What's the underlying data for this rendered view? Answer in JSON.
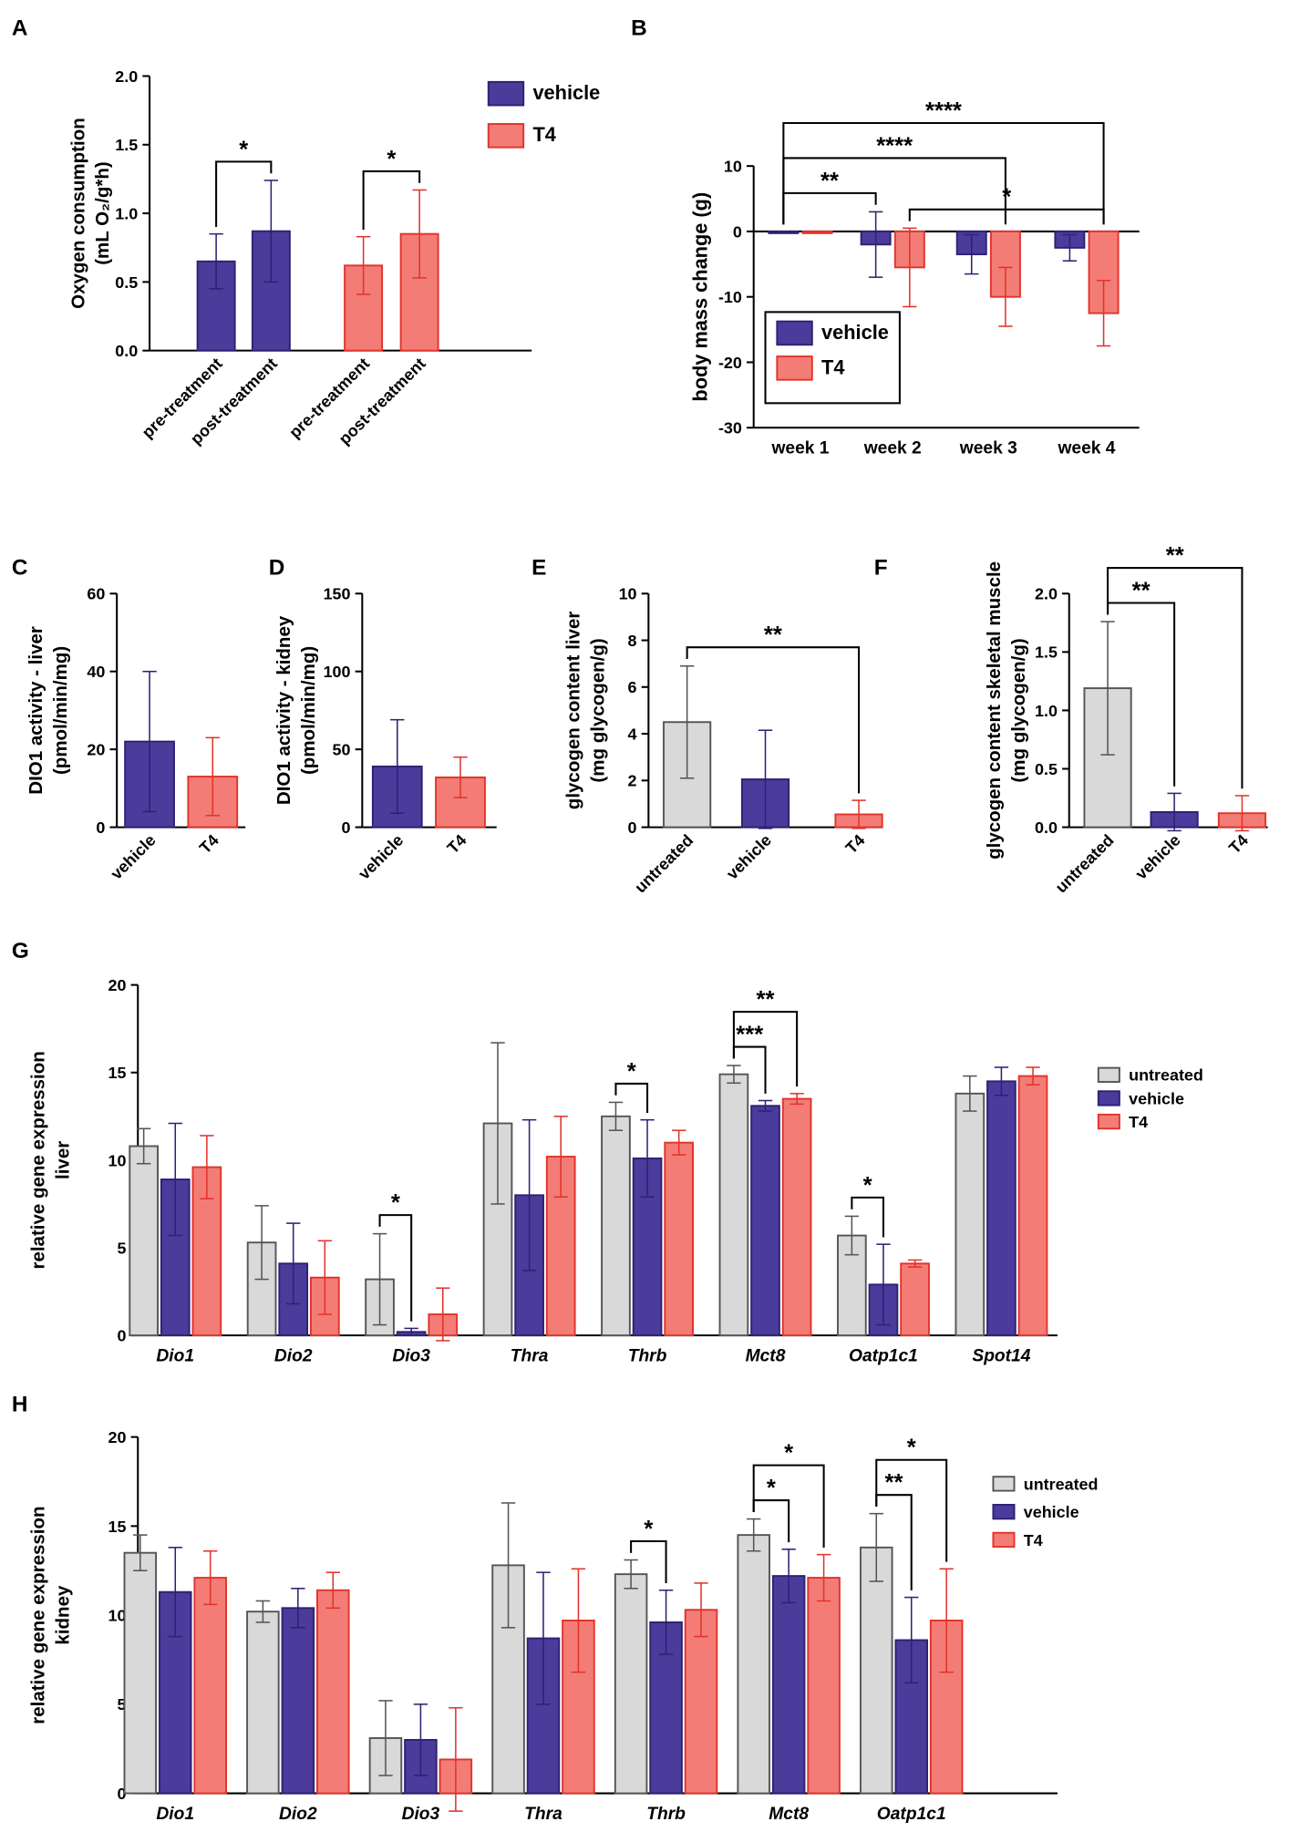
{
  "chart_data": [
    {
      "type": "bar",
      "panel": "A",
      "ylabel": [
        "Oxygen consumption",
        "(mL O₂/g*h)"
      ],
      "categories": [
        "pre-treatment",
        "post-treatment",
        "pre-treatment",
        "post-treatment"
      ],
      "series": [
        {
          "name": "vehicle",
          "color": "#4b3b9b",
          "edge": "#2c2273",
          "values": [
            0.65,
            0.87,
            null,
            null
          ],
          "errors": [
            0.2,
            0.37,
            null,
            null
          ]
        },
        {
          "name": "T4",
          "color": "#f37d76",
          "edge": "#e2332b",
          "values": [
            null,
            null,
            0.62,
            0.85
          ],
          "errors": [
            null,
            null,
            0.21,
            0.32
          ]
        }
      ],
      "ylim": [
        0,
        2
      ],
      "yticks": [
        {
          "value": 0,
          "label": "0.0"
        },
        {
          "value": 0.5,
          "label": "0.5"
        },
        {
          "value": 1,
          "label": "1.0"
        },
        {
          "value": 1.5,
          "label": "1.5"
        },
        {
          "value": 2,
          "label": "2.0"
        }
      ],
      "legend": "right",
      "annotations": [
        {
          "text": "*",
          "from": [
            0,
            0
          ],
          "to": [
            1,
            0
          ]
        },
        {
          "text": "*",
          "from": [
            2,
            1
          ],
          "to": [
            3,
            1
          ]
        }
      ]
    },
    {
      "type": "bar",
      "panel": "B",
      "ylabel": [
        "body mass change (g)"
      ],
      "categories": [
        "week 1",
        "week 2",
        "week 3",
        "week 4"
      ],
      "series": [
        {
          "name": "vehicle",
          "color": "#4b3b9b",
          "edge": "#2c2273",
          "values": [
            0,
            -2,
            -3.5,
            -2.5
          ],
          "errors": [
            0,
            5,
            3,
            2
          ]
        },
        {
          "name": "T4",
          "color": "#f37d76",
          "edge": "#e2332b",
          "values": [
            0,
            -5.5,
            -10,
            -12.5
          ],
          "errors": [
            0,
            6,
            4.5,
            5
          ]
        }
      ],
      "ylim": [
        -30,
        10
      ],
      "yticks": [
        -30,
        -20,
        -10,
        0,
        10
      ],
      "legend": "lower left",
      "annotations": [
        {
          "text": "**",
          "from": [
            0,
            0
          ],
          "to": [
            1,
            0
          ]
        },
        {
          "text": "*",
          "from": [
            1,
            1
          ],
          "to": [
            3,
            1
          ]
        },
        {
          "text": "****",
          "from": [
            0,
            0
          ],
          "to": [
            2,
            1
          ]
        },
        {
          "text": "****",
          "from": [
            0,
            0
          ],
          "to": [
            3,
            1
          ]
        }
      ]
    },
    {
      "type": "bar",
      "panel": "C",
      "ylabel": [
        "DIO1 activity - liver",
        "(pmol/min/mg)"
      ],
      "categories": [
        "vehicle",
        "T4"
      ],
      "series": [
        {
          "color": "#4b3b9b",
          "edge": "#2c2273",
          "values": [
            22,
            null
          ],
          "errors": [
            18,
            null
          ]
        },
        {
          "color": "#f37d76",
          "edge": "#e2332b",
          "values": [
            null,
            13
          ],
          "errors": [
            null,
            10
          ]
        }
      ],
      "ylim": [
        0,
        60
      ],
      "yticks": [
        0,
        20,
        40,
        60
      ],
      "annotations": []
    },
    {
      "type": "bar",
      "panel": "D",
      "ylabel": [
        "DIO1 activity - kidney",
        "(pmol/min/mg)"
      ],
      "categories": [
        "vehicle",
        "T4"
      ],
      "series": [
        {
          "color": "#4b3b9b",
          "edge": "#2c2273",
          "values": [
            39,
            null
          ],
          "errors": [
            30,
            null
          ]
        },
        {
          "color": "#f37d76",
          "edge": "#e2332b",
          "values": [
            null,
            32
          ],
          "errors": [
            null,
            13
          ]
        }
      ],
      "ylim": [
        0,
        150
      ],
      "yticks": [
        0,
        50,
        100,
        150
      ],
      "annotations": []
    },
    {
      "type": "bar",
      "panel": "E",
      "ylabel": [
        "glycogen content liver",
        "(mg glycogen/g)"
      ],
      "categories": [
        "untreated",
        "vehicle",
        "T4"
      ],
      "series": [
        {
          "color": "#d9d9d9",
          "edge": "#555555",
          "values": [
            4.5,
            null,
            null
          ],
          "errors": [
            2.4,
            null,
            null
          ]
        },
        {
          "color": "#4b3b9b",
          "edge": "#2c2273",
          "values": [
            null,
            2.05,
            null
          ],
          "errors": [
            null,
            2.1,
            null
          ]
        },
        {
          "color": "#f37d76",
          "edge": "#e2332b",
          "values": [
            null,
            null,
            0.55
          ],
          "errors": [
            null,
            null,
            0.6
          ]
        }
      ],
      "ylim": [
        0,
        10
      ],
      "yticks": [
        0,
        2,
        4,
        6,
        8,
        10
      ],
      "annotations": [
        {
          "text": "**",
          "from": [
            0,
            0
          ],
          "to": [
            2,
            2
          ]
        }
      ]
    },
    {
      "type": "bar",
      "panel": "F",
      "ylabel": [
        "glycogen content skeletal muscle",
        "(mg glycogen/g)"
      ],
      "categories": [
        "untreated",
        "vehicle",
        "T4"
      ],
      "series": [
        {
          "color": "#d9d9d9",
          "edge": "#555555",
          "values": [
            1.19,
            null,
            null
          ],
          "errors": [
            0.57,
            null,
            null
          ]
        },
        {
          "color": "#4b3b9b",
          "edge": "#2c2273",
          "values": [
            null,
            0.13,
            null
          ],
          "errors": [
            null,
            0.16,
            null
          ]
        },
        {
          "color": "#f37d76",
          "edge": "#e2332b",
          "values": [
            null,
            null,
            0.12
          ],
          "errors": [
            null,
            null,
            0.15
          ]
        }
      ],
      "ylim": [
        0,
        2
      ],
      "yticks": [
        {
          "value": 0,
          "label": "0.0"
        },
        {
          "value": 0.5,
          "label": "0.5"
        },
        {
          "value": 1,
          "label": "1.0"
        },
        {
          "value": 1.5,
          "label": "1.5"
        },
        {
          "value": 2,
          "label": "2.0"
        }
      ],
      "annotations": [
        {
          "text": "**",
          "from": [
            0,
            0
          ],
          "to": [
            1,
            1
          ]
        },
        {
          "text": "**",
          "from": [
            0,
            0
          ],
          "to": [
            2,
            2
          ]
        }
      ]
    },
    {
      "type": "bar",
      "panel": "G",
      "ylabel": [
        "relative gene expression",
        "liver"
      ],
      "categories": [
        "Dio1",
        "Dio2",
        "Dio3",
        "Thra",
        "Thrb",
        "Mct8",
        "Oatp1c1",
        "Spot14"
      ],
      "series": [
        {
          "name": "untreated",
          "color": "#d9d9d9",
          "edge": "#555555",
          "values": [
            10.8,
            5.3,
            3.2,
            12.1,
            12.5,
            14.9,
            5.7,
            13.8
          ],
          "errors": [
            1,
            2.1,
            2.6,
            4.6,
            0.8,
            0.5,
            1.1,
            1
          ]
        },
        {
          "name": "vehicle",
          "color": "#4b3b9b",
          "edge": "#2c2273",
          "values": [
            8.9,
            4.1,
            0.2,
            8,
            10.1,
            13.1,
            2.9,
            14.5
          ],
          "errors": [
            3.2,
            2.3,
            0.2,
            4.3,
            2.2,
            0.3,
            2.3,
            0.8
          ]
        },
        {
          "name": "T4",
          "color": "#f37d76",
          "edge": "#e2332b",
          "values": [
            9.6,
            3.3,
            1.2,
            10.2,
            11,
            13.5,
            4.1,
            14.8
          ],
          "errors": [
            1.8,
            2.1,
            1.5,
            2.3,
            0.7,
            0.3,
            0.2,
            0.5
          ]
        }
      ],
      "ylim": [
        0,
        20
      ],
      "yticks": [
        0,
        5,
        10,
        15,
        20
      ],
      "legend": "right",
      "annotations": [
        {
          "text": "*",
          "from": [
            2,
            0
          ],
          "to": [
            2,
            1
          ]
        },
        {
          "text": "*",
          "from": [
            4,
            0
          ],
          "to": [
            4,
            1
          ]
        },
        {
          "text": "***",
          "from": [
            5,
            0
          ],
          "to": [
            5,
            1
          ]
        },
        {
          "text": "**",
          "from": [
            5,
            0
          ],
          "to": [
            5,
            2
          ]
        },
        {
          "text": "*",
          "from": [
            6,
            0
          ],
          "to": [
            6,
            1
          ]
        }
      ]
    },
    {
      "type": "bar",
      "panel": "H",
      "ylabel": [
        "relative gene expression",
        "kidney"
      ],
      "categories": [
        "Dio1",
        "Dio2",
        "Dio3",
        "Thra",
        "Thrb",
        "Mct8",
        "Oatp1c1"
      ],
      "series": [
        {
          "name": "untreated",
          "color": "#d9d9d9",
          "edge": "#555555",
          "values": [
            13.5,
            10.2,
            3.1,
            12.8,
            12.3,
            14.5,
            13.8
          ],
          "errors": [
            1,
            0.6,
            2.1,
            3.5,
            0.8,
            0.9,
            1.9
          ]
        },
        {
          "name": "vehicle",
          "color": "#4b3b9b",
          "edge": "#2c2273",
          "values": [
            11.3,
            10.4,
            3,
            8.7,
            9.6,
            12.2,
            8.6
          ],
          "errors": [
            2.5,
            1.1,
            2,
            3.7,
            1.8,
            1.5,
            2.4
          ]
        },
        {
          "name": "T4",
          "color": "#f37d76",
          "edge": "#e2332b",
          "values": [
            12.1,
            11.4,
            1.9,
            9.7,
            10.3,
            12.1,
            9.7
          ],
          "errors": [
            1.5,
            1,
            2.9,
            2.9,
            1.5,
            1.3,
            2.9
          ]
        }
      ],
      "ylim": [
        0,
        20
      ],
      "yticks": [
        0,
        5,
        10,
        15,
        20
      ],
      "legend": "right",
      "annotations": [
        {
          "text": "*",
          "from": [
            4,
            0
          ],
          "to": [
            4,
            1
          ]
        },
        {
          "text": "*",
          "from": [
            5,
            0
          ],
          "to": [
            5,
            1
          ]
        },
        {
          "text": "*",
          "from": [
            5,
            0
          ],
          "to": [
            5,
            2
          ]
        },
        {
          "text": "**",
          "from": [
            6,
            0
          ],
          "to": [
            6,
            1
          ]
        },
        {
          "text": "*",
          "from": [
            6,
            0
          ],
          "to": [
            6,
            2
          ]
        }
      ]
    }
  ]
}
